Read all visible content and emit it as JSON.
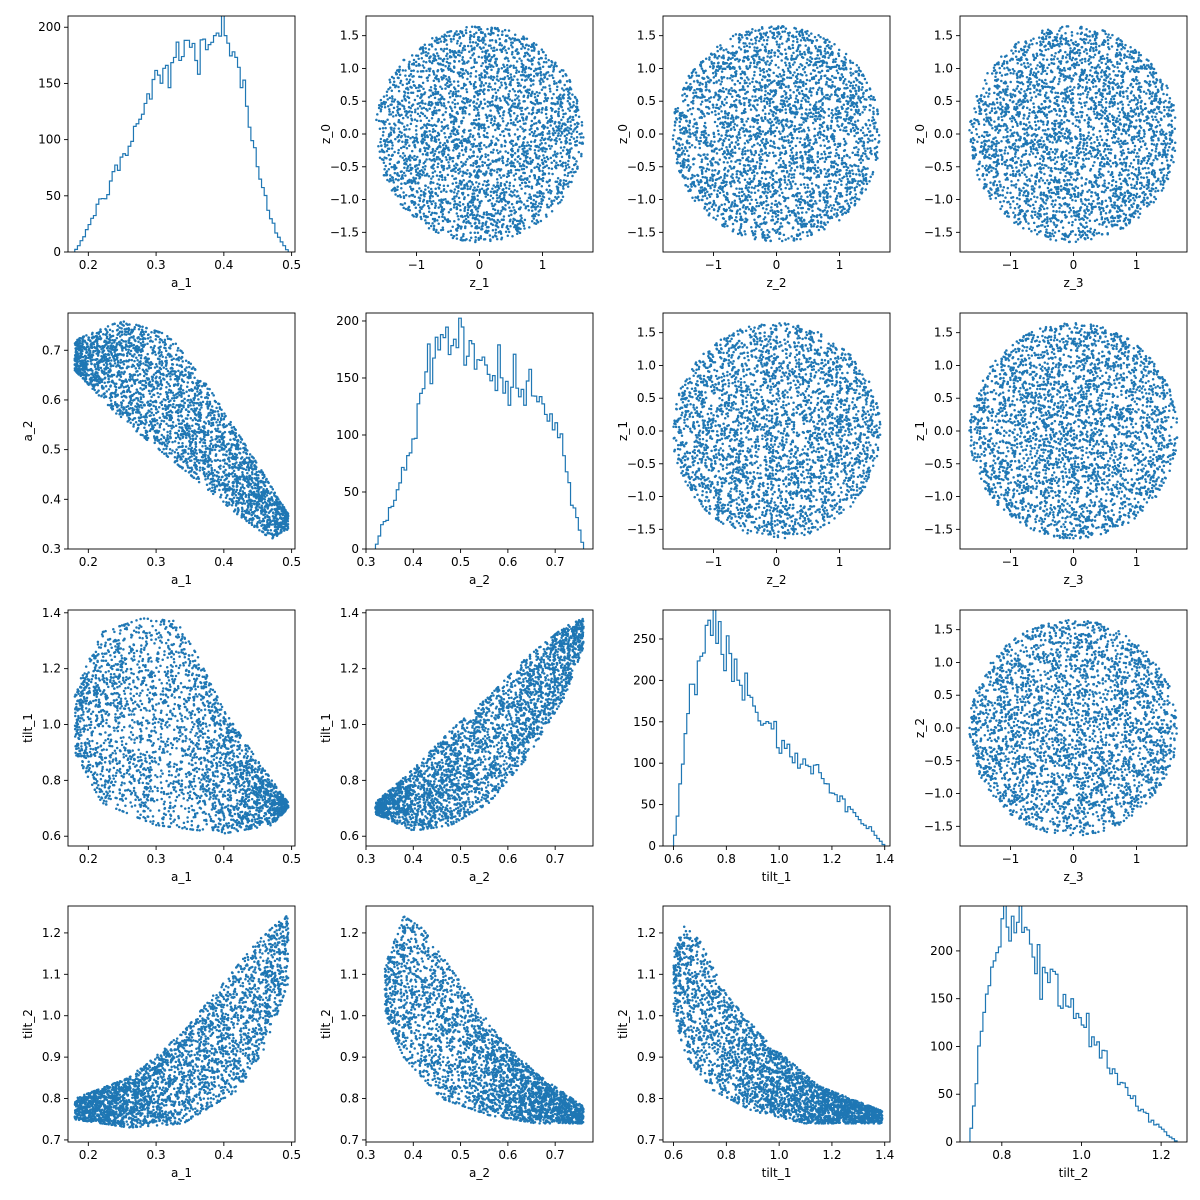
{
  "figure": {
    "colors": {
      "series": "#1f77b4",
      "axes": "#000000",
      "background": "#ffffff"
    }
  },
  "chart_data": [
    {
      "type": "histogram",
      "xlabel": "a_1",
      "ylabel": "",
      "xlim": [
        0.17,
        0.505
      ],
      "ylim": [
        0,
        210
      ],
      "xticks": [
        0.2,
        0.3,
        0.4,
        0.5
      ],
      "yticks": [
        0,
        50,
        100,
        150,
        200
      ],
      "range": [
        0.18,
        0.495
      ],
      "bins": 80,
      "profile": [
        [
          0.18,
          0
        ],
        [
          0.19,
          10
        ],
        [
          0.21,
          35
        ],
        [
          0.25,
          80
        ],
        [
          0.29,
          140
        ],
        [
          0.33,
          175
        ],
        [
          0.36,
          180
        ],
        [
          0.38,
          190
        ],
        [
          0.395,
          200
        ],
        [
          0.41,
          175
        ],
        [
          0.43,
          140
        ],
        [
          0.45,
          80
        ],
        [
          0.47,
          30
        ],
        [
          0.48,
          15
        ],
        [
          0.495,
          0
        ]
      ]
    },
    {
      "type": "scatter",
      "xlabel": "z_1",
      "ylabel": "z_0",
      "xlim": [
        -1.8,
        1.8
      ],
      "ylim": [
        -1.8,
        1.8
      ],
      "xticks": [
        -1,
        0,
        1
      ],
      "yticks": [
        -1.5,
        -1.0,
        -0.5,
        0.0,
        0.5,
        1.0,
        1.5
      ],
      "distribution": {
        "kind": "disk",
        "cx": 0,
        "cy": 0,
        "rx": 1.65,
        "ry": 1.65,
        "n": 3200
      }
    },
    {
      "type": "scatter",
      "xlabel": "z_2",
      "ylabel": "z_0",
      "xlim": [
        -1.8,
        1.8
      ],
      "ylim": [
        -1.8,
        1.8
      ],
      "xticks": [
        -1,
        0,
        1
      ],
      "yticks": [
        -1.5,
        -1.0,
        -0.5,
        0.0,
        0.5,
        1.0,
        1.5
      ],
      "distribution": {
        "kind": "disk",
        "cx": 0,
        "cy": 0,
        "rx": 1.65,
        "ry": 1.65,
        "n": 3200
      }
    },
    {
      "type": "scatter",
      "xlabel": "z_3",
      "ylabel": "z_0",
      "xlim": [
        -1.8,
        1.8
      ],
      "ylim": [
        -1.8,
        1.8
      ],
      "xticks": [
        -1,
        0,
        1
      ],
      "yticks": [
        -1.5,
        -1.0,
        -0.5,
        0.0,
        0.5,
        1.0,
        1.5
      ],
      "distribution": {
        "kind": "disk",
        "cx": 0,
        "cy": 0,
        "rx": 1.65,
        "ry": 1.65,
        "n": 3200
      }
    },
    {
      "type": "scatter",
      "xlabel": "a_1",
      "ylabel": "a_2",
      "xlim": [
        0.17,
        0.505
      ],
      "ylim": [
        0.3,
        0.775
      ],
      "xticks": [
        0.2,
        0.3,
        0.4,
        0.5
      ],
      "yticks": [
        0.3,
        0.4,
        0.5,
        0.6,
        0.7
      ],
      "distribution": {
        "kind": "band",
        "x_range": [
          0.18,
          0.495
        ],
        "lower": [
          [
            0.18,
            0.66
          ],
          [
            0.25,
            0.56
          ],
          [
            0.35,
            0.45
          ],
          [
            0.42,
            0.37
          ],
          [
            0.47,
            0.32
          ],
          [
            0.495,
            0.34
          ]
        ],
        "upper": [
          [
            0.18,
            0.72
          ],
          [
            0.25,
            0.76
          ],
          [
            0.32,
            0.73
          ],
          [
            0.38,
            0.62
          ],
          [
            0.45,
            0.47
          ],
          [
            0.495,
            0.37
          ]
        ],
        "n": 3000
      }
    },
    {
      "type": "histogram",
      "xlabel": "a_2",
      "ylabel": "",
      "xlim": [
        0.3,
        0.78
      ],
      "ylim": [
        0,
        207
      ],
      "xticks": [
        0.3,
        0.4,
        0.5,
        0.6,
        0.7
      ],
      "yticks": [
        0,
        50,
        100,
        150,
        200
      ],
      "range": [
        0.32,
        0.76
      ],
      "bins": 80,
      "profile": [
        [
          0.32,
          0
        ],
        [
          0.33,
          15
        ],
        [
          0.36,
          40
        ],
        [
          0.4,
          100
        ],
        [
          0.43,
          160
        ],
        [
          0.46,
          185
        ],
        [
          0.49,
          188
        ],
        [
          0.52,
          175
        ],
        [
          0.56,
          160
        ],
        [
          0.6,
          150
        ],
        [
          0.64,
          135
        ],
        [
          0.68,
          125
        ],
        [
          0.71,
          100
        ],
        [
          0.73,
          50
        ],
        [
          0.75,
          20
        ],
        [
          0.76,
          0
        ]
      ]
    },
    {
      "type": "scatter",
      "xlabel": "z_2",
      "ylabel": "z_1",
      "xlim": [
        -1.8,
        1.8
      ],
      "ylim": [
        -1.8,
        1.8
      ],
      "xticks": [
        -1,
        0,
        1
      ],
      "yticks": [
        -1.5,
        -1.0,
        -0.5,
        0.0,
        0.5,
        1.0,
        1.5
      ],
      "distribution": {
        "kind": "disk",
        "cx": 0,
        "cy": 0,
        "rx": 1.65,
        "ry": 1.65,
        "n": 3200
      }
    },
    {
      "type": "scatter",
      "xlabel": "z_3",
      "ylabel": "z_1",
      "xlim": [
        -1.8,
        1.8
      ],
      "ylim": [
        -1.8,
        1.8
      ],
      "xticks": [
        -1,
        0,
        1
      ],
      "yticks": [
        -1.5,
        -1.0,
        -0.5,
        0.0,
        0.5,
        1.0,
        1.5
      ],
      "distribution": {
        "kind": "disk",
        "cx": 0,
        "cy": 0,
        "rx": 1.65,
        "ry": 1.65,
        "n": 3200
      }
    },
    {
      "type": "scatter",
      "xlabel": "a_1",
      "ylabel": "tilt_1",
      "xlim": [
        0.17,
        0.505
      ],
      "ylim": [
        0.565,
        1.41
      ],
      "xticks": [
        0.2,
        0.3,
        0.4,
        0.5
      ],
      "yticks": [
        0.6,
        0.8,
        1.0,
        1.2,
        1.4
      ],
      "distribution": {
        "kind": "band",
        "x_range": [
          0.18,
          0.495
        ],
        "lower": [
          [
            0.18,
            0.9
          ],
          [
            0.22,
            0.72
          ],
          [
            0.3,
            0.64
          ],
          [
            0.4,
            0.61
          ],
          [
            0.47,
            0.64
          ],
          [
            0.495,
            0.7
          ]
        ],
        "upper": [
          [
            0.18,
            1.12
          ],
          [
            0.22,
            1.33
          ],
          [
            0.28,
            1.38
          ],
          [
            0.33,
            1.37
          ],
          [
            0.36,
            1.25
          ],
          [
            0.4,
            1.05
          ],
          [
            0.45,
            0.87
          ],
          [
            0.495,
            0.72
          ]
        ],
        "n": 3000
      }
    },
    {
      "type": "scatter",
      "xlabel": "a_2",
      "ylabel": "tilt_1",
      "xlim": [
        0.3,
        0.78
      ],
      "ylim": [
        0.565,
        1.41
      ],
      "xticks": [
        0.3,
        0.4,
        0.5,
        0.6,
        0.7
      ],
      "yticks": [
        0.6,
        0.8,
        1.0,
        1.2,
        1.4
      ],
      "distribution": {
        "kind": "band",
        "x_range": [
          0.32,
          0.76
        ],
        "lower": [
          [
            0.32,
            0.68
          ],
          [
            0.4,
            0.62
          ],
          [
            0.48,
            0.64
          ],
          [
            0.56,
            0.72
          ],
          [
            0.64,
            0.88
          ],
          [
            0.72,
            1.1
          ],
          [
            0.76,
            1.28
          ]
        ],
        "upper": [
          [
            0.32,
            0.72
          ],
          [
            0.4,
            0.84
          ],
          [
            0.48,
            0.98
          ],
          [
            0.56,
            1.1
          ],
          [
            0.64,
            1.24
          ],
          [
            0.72,
            1.35
          ],
          [
            0.76,
            1.38
          ]
        ],
        "n": 3000
      }
    },
    {
      "type": "histogram",
      "xlabel": "tilt_1",
      "ylabel": "",
      "xlim": [
        0.56,
        1.42
      ],
      "ylim": [
        0,
        285
      ],
      "xticks": [
        0.6,
        0.8,
        1.0,
        1.2,
        1.4
      ],
      "yticks": [
        0,
        50,
        100,
        150,
        200,
        250
      ],
      "range": [
        0.6,
        1.4
      ],
      "bins": 80,
      "profile": [
        [
          0.6,
          0
        ],
        [
          0.63,
          80
        ],
        [
          0.66,
          170
        ],
        [
          0.7,
          235
        ],
        [
          0.74,
          260
        ],
        [
          0.78,
          255
        ],
        [
          0.82,
          220
        ],
        [
          0.88,
          180
        ],
        [
          0.95,
          150
        ],
        [
          1.0,
          130
        ],
        [
          1.08,
          105
        ],
        [
          1.15,
          85
        ],
        [
          1.22,
          60
        ],
        [
          1.3,
          35
        ],
        [
          1.36,
          15
        ],
        [
          1.4,
          0
        ]
      ]
    },
    {
      "type": "scatter",
      "xlabel": "z_3",
      "ylabel": "z_2",
      "xlim": [
        -1.8,
        1.8
      ],
      "ylim": [
        -1.8,
        1.8
      ],
      "xticks": [
        -1,
        0,
        1
      ],
      "yticks": [
        -1.5,
        -1.0,
        -0.5,
        0.0,
        0.5,
        1.0,
        1.5
      ],
      "distribution": {
        "kind": "disk",
        "cx": 0,
        "cy": 0,
        "rx": 1.65,
        "ry": 1.65,
        "n": 3200
      }
    },
    {
      "type": "scatter",
      "xlabel": "a_1",
      "ylabel": "tilt_2",
      "xlim": [
        0.17,
        0.505
      ],
      "ylim": [
        0.695,
        1.265
      ],
      "xticks": [
        0.2,
        0.3,
        0.4,
        0.5
      ],
      "yticks": [
        0.7,
        0.8,
        0.9,
        1.0,
        1.1,
        1.2
      ],
      "distribution": {
        "kind": "band",
        "x_range": [
          0.18,
          0.495
        ],
        "lower": [
          [
            0.18,
            0.75
          ],
          [
            0.26,
            0.73
          ],
          [
            0.34,
            0.74
          ],
          [
            0.42,
            0.82
          ],
          [
            0.46,
            0.92
          ],
          [
            0.495,
            1.08
          ]
        ],
        "upper": [
          [
            0.18,
            0.8
          ],
          [
            0.26,
            0.85
          ],
          [
            0.34,
            0.96
          ],
          [
            0.4,
            1.08
          ],
          [
            0.45,
            1.18
          ],
          [
            0.49,
            1.24
          ]
        ],
        "n": 3000
      }
    },
    {
      "type": "scatter",
      "xlabel": "a_2",
      "ylabel": "tilt_2",
      "xlim": [
        0.3,
        0.78
      ],
      "ylim": [
        0.695,
        1.265
      ],
      "xticks": [
        0.3,
        0.4,
        0.5,
        0.6,
        0.7
      ],
      "yticks": [
        0.7,
        0.8,
        0.9,
        1.0,
        1.1,
        1.2
      ],
      "distribution": {
        "kind": "band",
        "x_range": [
          0.34,
          0.76
        ],
        "lower": [
          [
            0.34,
            1.0
          ],
          [
            0.38,
            0.9
          ],
          [
            0.46,
            0.8
          ],
          [
            0.56,
            0.76
          ],
          [
            0.66,
            0.74
          ],
          [
            0.76,
            0.74
          ]
        ],
        "upper": [
          [
            0.34,
            1.12
          ],
          [
            0.38,
            1.24
          ],
          [
            0.42,
            1.21
          ],
          [
            0.5,
            1.08
          ],
          [
            0.58,
            0.95
          ],
          [
            0.66,
            0.86
          ],
          [
            0.76,
            0.78
          ]
        ],
        "n": 3000
      }
    },
    {
      "type": "scatter",
      "xlabel": "tilt_1",
      "ylabel": "tilt_2",
      "xlim": [
        0.56,
        1.42
      ],
      "ylim": [
        0.695,
        1.265
      ],
      "xticks": [
        0.6,
        0.8,
        1.0,
        1.2,
        1.4
      ],
      "yticks": [
        0.7,
        0.8,
        0.9,
        1.0,
        1.1,
        1.2
      ],
      "distribution": {
        "kind": "band",
        "x_range": [
          0.6,
          1.39
        ],
        "lower": [
          [
            0.6,
            1.0
          ],
          [
            0.65,
            0.9
          ],
          [
            0.75,
            0.82
          ],
          [
            0.9,
            0.77
          ],
          [
            1.1,
            0.74
          ],
          [
            1.39,
            0.74
          ]
        ],
        "upper": [
          [
            0.6,
            1.15
          ],
          [
            0.64,
            1.22
          ],
          [
            0.7,
            1.18
          ],
          [
            0.8,
            1.05
          ],
          [
            0.95,
            0.94
          ],
          [
            1.15,
            0.83
          ],
          [
            1.39,
            0.77
          ]
        ],
        "n": 3000
      }
    },
    {
      "type": "histogram",
      "xlabel": "tilt_2",
      "ylabel": "",
      "xlim": [
        0.695,
        1.265
      ],
      "ylim": [
        0,
        247
      ],
      "xticks": [
        0.8,
        1.0,
        1.2
      ],
      "yticks": [
        0,
        50,
        100,
        150,
        200
      ],
      "range": [
        0.72,
        1.24
      ],
      "bins": 80,
      "profile": [
        [
          0.72,
          0
        ],
        [
          0.74,
          80
        ],
        [
          0.76,
          150
        ],
        [
          0.79,
          215
        ],
        [
          0.82,
          232
        ],
        [
          0.85,
          215
        ],
        [
          0.88,
          200
        ],
        [
          0.92,
          175
        ],
        [
          0.97,
          145
        ],
        [
          1.02,
          115
        ],
        [
          1.07,
          85
        ],
        [
          1.12,
          50
        ],
        [
          1.17,
          25
        ],
        [
          1.21,
          10
        ],
        [
          1.24,
          0
        ]
      ]
    }
  ]
}
